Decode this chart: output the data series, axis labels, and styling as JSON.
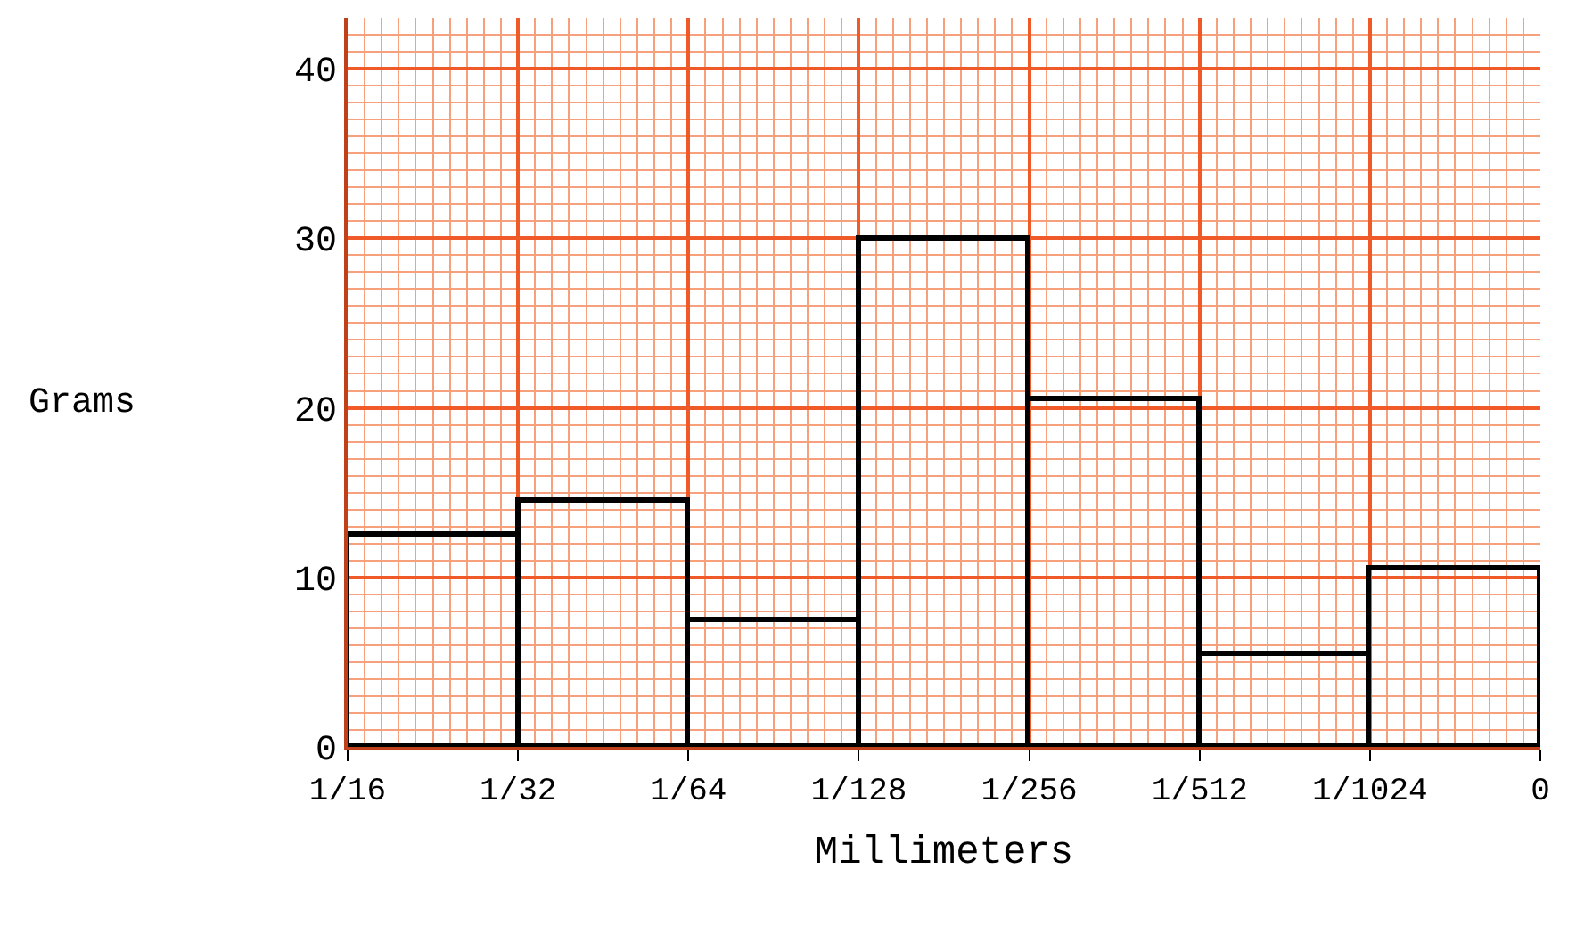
{
  "chart_data": {
    "type": "bar",
    "xlabel": "Millimeters",
    "ylabel": "Grams",
    "categories": [
      "1/16",
      "1/32",
      "1/64",
      "1/128",
      "1/256",
      "1/512",
      "1/1024",
      "0"
    ],
    "values": [
      12.5,
      14.5,
      7.5,
      30,
      20.5,
      5.5,
      10.5,
      null
    ],
    "color": "#000000",
    "ylim": [
      0,
      43
    ],
    "yticks": [
      0,
      10,
      20,
      30,
      40
    ],
    "grid": true
  }
}
